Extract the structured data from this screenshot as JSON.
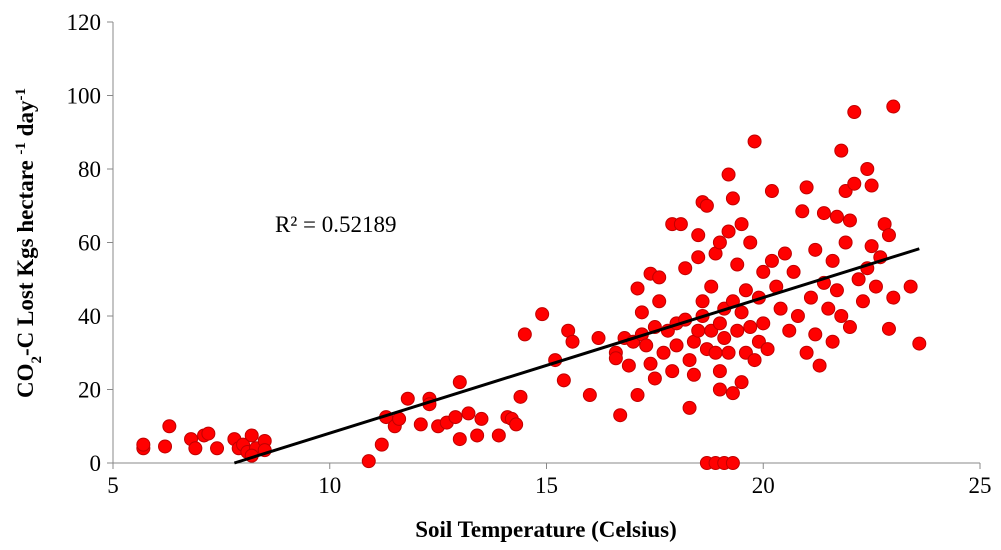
{
  "chart_data": {
    "type": "scatter",
    "x_label": "Soil Temperature (Celsius)",
    "y_label_parts": [
      "CO",
      "2",
      "-C Lost Kgs hectare ",
      "-1",
      " day",
      "-1"
    ],
    "annotation": "R² = 0.52189",
    "xlim": [
      5,
      25
    ],
    "xticks": [
      5,
      10,
      15,
      20,
      25
    ],
    "ylim": [
      0,
      120
    ],
    "yticks": [
      0,
      20,
      40,
      60,
      80,
      100,
      120
    ],
    "grid": false,
    "color": "#ff0000",
    "x": [
      5.7,
      5.7,
      6.2,
      6.3,
      6.8,
      6.9,
      7.1,
      7.2,
      7.4,
      7.8,
      7.9,
      8.0,
      8.1,
      8.2,
      8.3,
      8.5,
      8.5,
      8.2,
      10.9,
      11.2,
      11.3,
      11.5,
      11.6,
      11.8,
      12.1,
      12.3,
      12.3,
      12.5,
      12.7,
      12.9,
      13.0,
      13.0,
      13.2,
      13.4,
      13.5,
      13.9,
      14.1,
      14.2,
      14.3,
      14.4,
      14.5,
      14.9,
      15.2,
      15.4,
      15.5,
      15.6,
      16.0,
      16.2,
      16.6,
      16.6,
      16.7,
      16.8,
      16.9,
      17.0,
      17.1,
      17.1,
      17.2,
      17.2,
      17.3,
      17.4,
      17.4,
      17.5,
      17.5,
      17.6,
      17.6,
      17.7,
      17.8,
      17.9,
      17.9,
      18.0,
      18.0,
      18.1,
      18.2,
      18.2,
      18.3,
      18.3,
      18.4,
      18.4,
      18.5,
      18.5,
      18.5,
      18.6,
      18.6,
      18.6,
      18.7,
      18.7,
      18.7,
      18.8,
      18.8,
      18.9,
      18.9,
      18.9,
      19.0,
      19.0,
      19.0,
      19.0,
      19.1,
      19.1,
      19.1,
      19.2,
      19.2,
      19.2,
      19.3,
      19.3,
      19.3,
      19.3,
      19.4,
      19.4,
      19.5,
      19.5,
      19.5,
      19.6,
      19.6,
      19.7,
      19.7,
      19.8,
      19.8,
      19.9,
      19.9,
      20.0,
      20.0,
      20.1,
      20.2,
      20.2,
      20.3,
      20.4,
      20.5,
      20.6,
      20.7,
      20.8,
      20.9,
      21.0,
      21.0,
      21.1,
      21.2,
      21.2,
      21.3,
      21.4,
      21.4,
      21.5,
      21.6,
      21.6,
      21.7,
      21.7,
      21.8,
      21.8,
      21.9,
      21.9,
      22.0,
      22.0,
      22.1,
      22.1,
      22.2,
      22.3,
      22.4,
      22.4,
      22.5,
      22.5,
      22.6,
      22.7,
      22.8,
      22.9,
      22.9,
      23.0,
      23.0,
      23.4,
      23.6
    ],
    "values": [
      4,
      5,
      4.5,
      10,
      6.5,
      4,
      7.5,
      8,
      4,
      6.5,
      4,
      5,
      3,
      7.5,
      4,
      6,
      3.5,
      2,
      0.5,
      5,
      12.5,
      10,
      12,
      17.5,
      10.5,
      17.5,
      16,
      10,
      11,
      12.5,
      6.5,
      22,
      13.5,
      7.5,
      12,
      7.5,
      12.5,
      12,
      10.5,
      18,
      35,
      40.5,
      28,
      22.5,
      36,
      33,
      18.5,
      34,
      30,
      28.5,
      13,
      34,
      26.5,
      33,
      47.5,
      18.5,
      41,
      35,
      32,
      27,
      51.5,
      37,
      23,
      50.5,
      44,
      30,
      36,
      25,
      65,
      38,
      32,
      65,
      39,
      53,
      28,
      15,
      24,
      33,
      36,
      56,
      62,
      44,
      71,
      40,
      31,
      70,
      0,
      36,
      48,
      30,
      0,
      57,
      25,
      38,
      60,
      20,
      0,
      42,
      34,
      78.5,
      63,
      30,
      44,
      19,
      0,
      72,
      36,
      54,
      65,
      41,
      22,
      47,
      30,
      37,
      60,
      87.5,
      28,
      45,
      33,
      52,
      38,
      31,
      74,
      55,
      48,
      42,
      57,
      36,
      52,
      40,
      68.5,
      75,
      30,
      45,
      58,
      35,
      26.5,
      68,
      49,
      42,
      55,
      33,
      67,
      47,
      85,
      40,
      74,
      60,
      66,
      37,
      95.5,
      76,
      50,
      44,
      80,
      53,
      75.5,
      59,
      48,
      56,
      65,
      36.5,
      62,
      97,
      45,
      48,
      32.5
    ],
    "trendline": {
      "x": [
        7.8,
        23.6
      ],
      "values": [
        0,
        58.3
      ],
      "color": "#000000"
    }
  }
}
